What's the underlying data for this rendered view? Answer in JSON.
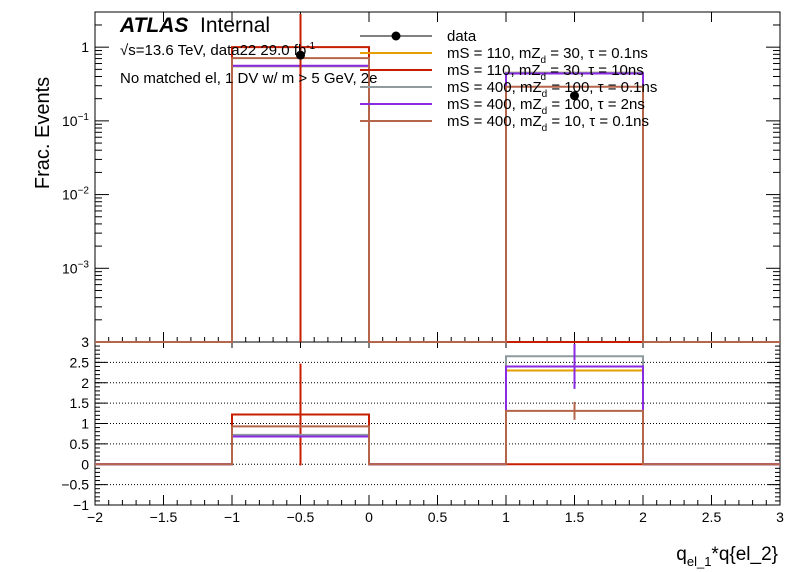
{
  "chart_data": {
    "type": "histogram-with-ratio",
    "header": {
      "atlas": "ATLAS",
      "status": "Internal",
      "energy": "√s=13.6 TeV, data22 29.0 fb",
      "energy_sup": "-1",
      "selection": "No matched el, 1 DV w/ m > 5 GeV, 2e"
    },
    "xlabel_main": "q",
    "xlabel_sub": "el_1",
    "xlabel_rest": "*q{el_2}",
    "ylabel": "Frac. Events",
    "xlim": [
      -2,
      3
    ],
    "xticks": [
      "−2",
      "−1.5",
      "−1",
      "−0.5",
      "0",
      "0.5",
      "1",
      "1.5",
      "2",
      "2.5",
      "3"
    ],
    "xtick_values": [
      -2,
      -1.5,
      -1,
      -0.5,
      0,
      0.5,
      1,
      1.5,
      2,
      2.5,
      3
    ],
    "upper": {
      "scale": "log",
      "ylim": [
        0.0001,
        3
      ],
      "yticks": [
        {
          "value": 1,
          "label": "1",
          "sup": ""
        },
        {
          "value": 0.1,
          "label": "10",
          "sup": "−1"
        },
        {
          "value": 0.01,
          "label": "10",
          "sup": "−2"
        },
        {
          "value": 0.001,
          "label": "10",
          "sup": "−3"
        }
      ]
    },
    "lower": {
      "ylim": [
        -1,
        3
      ],
      "yticks": [
        "−1",
        "−0.5",
        "0",
        "0.5",
        "1",
        "1.5",
        "2",
        "2.5",
        "3"
      ],
      "ytick_values": [
        -1,
        -0.5,
        0,
        0.5,
        1,
        1.5,
        2,
        2.5,
        3
      ]
    },
    "bins": [
      [
        -1,
        0
      ],
      [
        1,
        2
      ]
    ],
    "data": {
      "name": "data",
      "color": "#000000",
      "x": [
        -0.5,
        1.5
      ],
      "y": [
        0.78,
        0.22
      ]
    },
    "series": [
      {
        "name": "mS = 110, mZ_d = 30, τ = 0.1ns",
        "label": "mS = 110, mZ",
        "sub": "d",
        "tail": " = 30, τ = 0.1ns",
        "color": "#e69f00",
        "values": [
          0.55,
          0.45
        ],
        "ratio": [
          0.7,
          2.3
        ],
        "ratio_err": [
          0.0,
          0.0
        ]
      },
      {
        "name": "mS = 110, mZ_d = 30, τ = 10ns",
        "label": "mS = 110, mZ",
        "sub": "d",
        "tail": " = 30, τ = 10ns",
        "color": "#c81e00",
        "values": [
          1.0,
          0.0001
        ],
        "ratio": [
          1.22,
          0.0
        ],
        "ratio_err": [
          1.25,
          0.0
        ]
      },
      {
        "name": "mS = 400, mZ_d = 100, τ = 0.1ns",
        "label": "mS = 400, mZ",
        "sub": "d",
        "tail": " = 100, τ = 0.1ns",
        "color": "#8e9a9e",
        "values": [
          0.55,
          0.45
        ],
        "ratio": [
          0.72,
          2.65
        ],
        "ratio_err": [
          0.0,
          0.0
        ]
      },
      {
        "name": "mS = 400, mZ_d = 100, τ = 2ns",
        "label": "mS = 400, mZ",
        "sub": "d",
        "tail": " = 100, τ = 2ns",
        "color": "#8a2be2",
        "values": [
          0.56,
          0.44
        ],
        "ratio": [
          0.68,
          2.4
        ],
        "ratio_err": [
          0.0,
          0.55
        ]
      },
      {
        "name": "mS = 400, mZ_d = 10, τ = 0.1ns",
        "label": "mS = 400, mZ",
        "sub": "d",
        "tail": " = 10, τ = 0.1ns",
        "color": "#b5654a",
        "values": [
          0.71,
          0.29
        ],
        "ratio": [
          0.93,
          1.31
        ],
        "ratio_err": [
          0.0,
          0.22
        ]
      }
    ]
  }
}
